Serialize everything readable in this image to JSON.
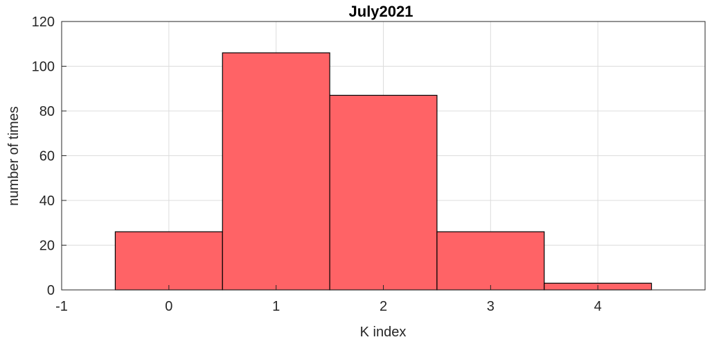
{
  "chart_data": {
    "type": "bar",
    "title": "July2021",
    "xlabel": "K index",
    "ylabel": "number of times",
    "bins": [
      {
        "x": 0,
        "value": 26
      },
      {
        "x": 1,
        "value": 106
      },
      {
        "x": 2,
        "value": 87
      },
      {
        "x": 3,
        "value": 26
      },
      {
        "x": 4,
        "value": 3
      }
    ],
    "bin_width": 1,
    "xlim": [
      -1,
      5
    ],
    "ylim": [
      0,
      120
    ],
    "xticks": [
      -1,
      0,
      1,
      2,
      3,
      4
    ],
    "yticks": [
      0,
      20,
      40,
      60,
      80,
      100,
      120
    ],
    "grid": true,
    "bar_color": "#ff6366",
    "edge_color": "#000000"
  }
}
